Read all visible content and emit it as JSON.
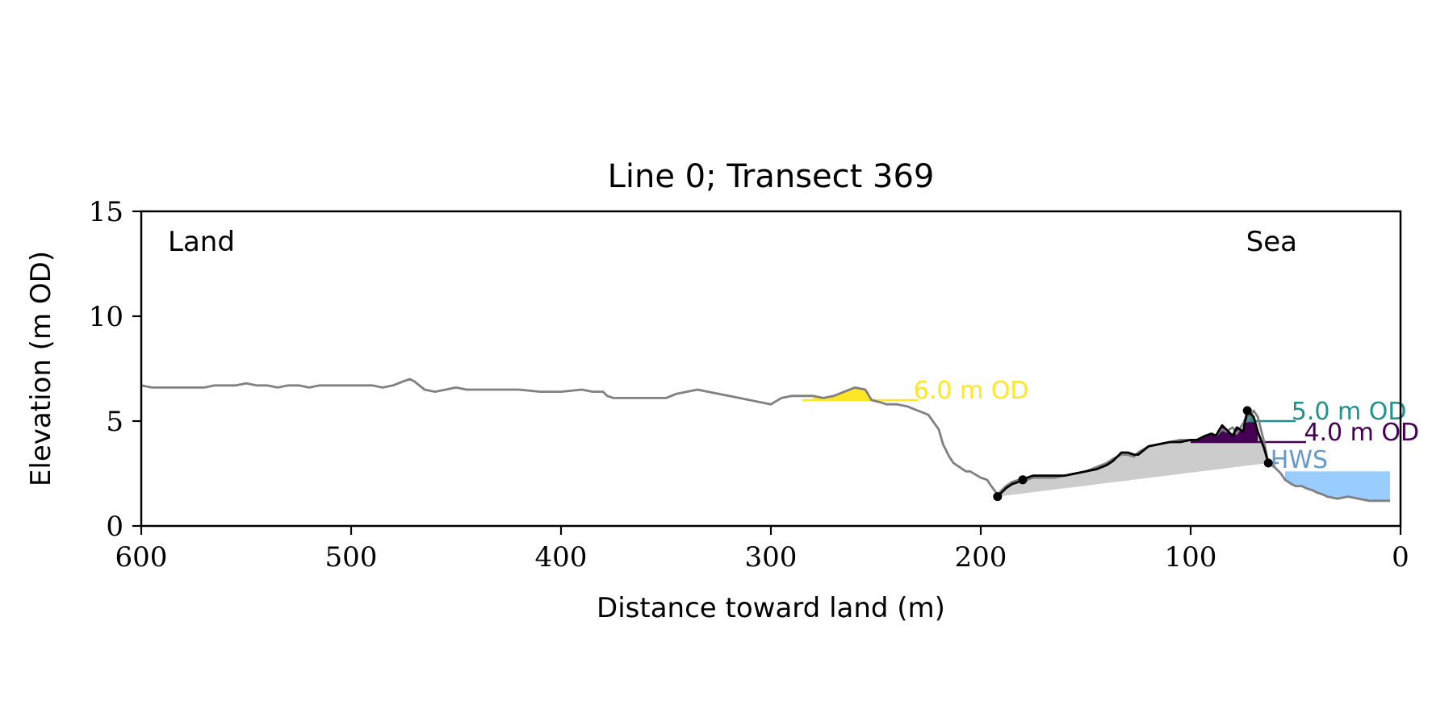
{
  "chart_data": {
    "type": "line",
    "title": "Line 0; Transect 369",
    "xlabel": "Distance toward land (m)",
    "ylabel": "Elevation (m OD)",
    "xlim": [
      600,
      0
    ],
    "ylim": [
      0,
      15
    ],
    "x_ticks": [
      600,
      500,
      400,
      300,
      200,
      100,
      0
    ],
    "y_ticks": [
      0,
      5,
      10,
      15
    ],
    "grid": false,
    "corner_labels": {
      "left": "Land",
      "right": "Sea"
    },
    "colors": {
      "profile": "#808080",
      "section": "#000000",
      "fill_grey": "#cccccc",
      "level_6": "#fde725",
      "level_5": "#21918c",
      "level_4": "#440154",
      "hws": "#6699cc",
      "sea_fill": "#99ccff"
    },
    "profile": {
      "x": [
        600,
        595,
        590,
        585,
        580,
        575,
        570,
        565,
        560,
        555,
        550,
        545,
        540,
        535,
        530,
        525,
        520,
        515,
        510,
        505,
        500,
        495,
        490,
        485,
        480,
        475,
        472,
        470,
        465,
        460,
        455,
        450,
        445,
        440,
        430,
        420,
        410,
        400,
        390,
        385,
        380,
        378,
        375,
        370,
        365,
        360,
        355,
        350,
        345,
        340,
        335,
        330,
        325,
        320,
        315,
        310,
        305,
        300,
        295,
        290,
        285,
        280,
        275,
        270,
        265,
        260,
        255,
        252,
        248,
        245,
        240,
        235,
        230,
        225,
        220,
        218,
        215,
        213,
        210,
        207,
        205,
        200,
        197,
        195,
        192,
        190,
        188,
        185,
        182,
        180,
        178,
        175,
        170,
        165,
        160,
        155,
        150,
        145,
        140,
        137,
        135,
        133,
        130,
        127,
        125,
        120,
        115,
        110,
        105,
        100,
        97,
        95,
        93,
        90,
        88,
        85,
        83,
        80,
        78,
        75,
        73,
        70,
        68,
        65,
        63,
        60,
        57,
        55,
        52,
        50,
        47,
        45,
        42,
        40,
        37,
        35,
        30,
        25,
        20,
        15,
        10,
        5
      ],
      "y": [
        6.7,
        6.6,
        6.6,
        6.6,
        6.6,
        6.6,
        6.6,
        6.7,
        6.7,
        6.7,
        6.8,
        6.7,
        6.7,
        6.6,
        6.7,
        6.7,
        6.6,
        6.7,
        6.7,
        6.7,
        6.7,
        6.7,
        6.7,
        6.6,
        6.7,
        6.9,
        7.0,
        6.9,
        6.5,
        6.4,
        6.5,
        6.6,
        6.5,
        6.5,
        6.5,
        6.5,
        6.4,
        6.4,
        6.5,
        6.4,
        6.4,
        6.2,
        6.1,
        6.1,
        6.1,
        6.1,
        6.1,
        6.1,
        6.3,
        6.4,
        6.5,
        6.4,
        6.3,
        6.2,
        6.1,
        6.0,
        5.9,
        5.8,
        6.1,
        6.2,
        6.2,
        6.2,
        6.1,
        6.2,
        6.4,
        6.6,
        6.5,
        6.0,
        5.9,
        5.8,
        5.8,
        5.7,
        5.5,
        5.3,
        4.6,
        3.9,
        3.3,
        3.0,
        2.8,
        2.6,
        2.6,
        2.3,
        2.2,
        1.9,
        1.5,
        1.7,
        1.9,
        2.1,
        2.2,
        2.3,
        2.2,
        2.3,
        2.3,
        2.3,
        2.4,
        2.5,
        2.6,
        2.8,
        3.0,
        3.2,
        3.3,
        3.4,
        3.4,
        3.3,
        3.5,
        3.8,
        3.9,
        4.0,
        4.1,
        4.1,
        4.1,
        4.2,
        4.3,
        4.4,
        4.3,
        4.6,
        4.5,
        4.7,
        4.4,
        4.9,
        5.0,
        5.5,
        5.2,
        4.0,
        3.0,
        2.8,
        2.5,
        2.2,
        2.0,
        1.9,
        1.9,
        1.8,
        1.7,
        1.6,
        1.5,
        1.4,
        1.3,
        1.4,
        1.3,
        1.2,
        1.2,
        1.2
      ]
    },
    "section": {
      "x": [
        192,
        190,
        188,
        185,
        182,
        180,
        178,
        175,
        170,
        165,
        160,
        155,
        150,
        145,
        140,
        137,
        135,
        133,
        130,
        127,
        125,
        120,
        115,
        110,
        105,
        100,
        97,
        95,
        93,
        90,
        88,
        85,
        83,
        80,
        78,
        75,
        73,
        70,
        68,
        65,
        63
      ],
      "y": [
        1.4,
        1.6,
        1.8,
        2.0,
        2.1,
        2.2,
        2.3,
        2.4,
        2.4,
        2.4,
        2.4,
        2.5,
        2.6,
        2.7,
        2.9,
        3.1,
        3.3,
        3.5,
        3.5,
        3.4,
        3.4,
        3.8,
        3.9,
        4.0,
        4.0,
        4.1,
        4.1,
        4.2,
        4.3,
        4.4,
        4.3,
        4.8,
        4.6,
        4.3,
        4.7,
        4.5,
        5.5,
        5.2,
        4.5,
        3.7,
        3.0
      ]
    },
    "section_points": {
      "x": [
        192,
        180,
        73,
        63
      ],
      "y": [
        1.4,
        2.2,
        5.5,
        3.0
      ]
    },
    "levels": [
      {
        "label": "6.0 m OD",
        "elevation": 6.0,
        "key": "level_6",
        "x_from": 285,
        "x_to": 230
      },
      {
        "label": "5.0 m OD",
        "elevation": 5.0,
        "key": "level_5",
        "x_from": 75,
        "x_to": 50
      },
      {
        "label": "4.0 m OD",
        "elevation": 4.0,
        "key": "level_4",
        "x_from": 100,
        "x_to": 45
      },
      {
        "label": "HWS",
        "elevation": 3.0,
        "key": "hws",
        "x_from": 63,
        "x_to": 58
      }
    ],
    "sea_fill": {
      "x_from": 55,
      "x_to": 5,
      "level": 2.6
    }
  }
}
